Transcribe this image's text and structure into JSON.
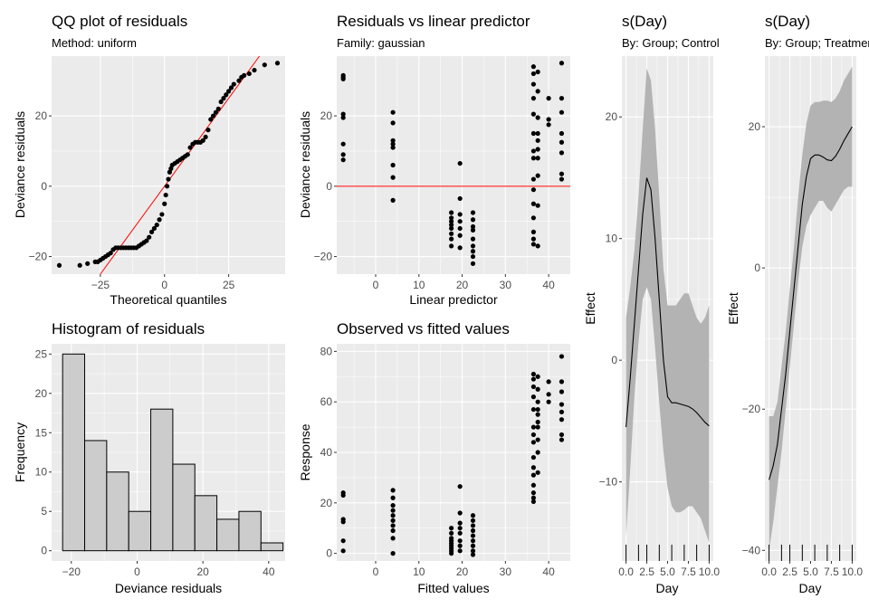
{
  "chart_data": [
    {
      "id": "qq",
      "type": "scatter",
      "title": "QQ plot of residuals",
      "subtitle": "Method: uniform",
      "xlabel": "Theoretical quantiles",
      "ylabel": "Deviance residuals",
      "xlim": [
        -44,
        47
      ],
      "ylim": [
        -25,
        37
      ],
      "xticks": [
        -25,
        0,
        25
      ],
      "yticks": [
        -20,
        0,
        20
      ],
      "reference_line": {
        "from": [
          -25,
          -25
        ],
        "to": [
          37,
          37
        ],
        "color": "#ff0000"
      },
      "points": [
        [
          -41,
          -22.5
        ],
        [
          -33,
          -22.5
        ],
        [
          -30,
          -22
        ],
        [
          -27,
          -21.5
        ],
        [
          -26,
          -21.5
        ],
        [
          -25,
          -21
        ],
        [
          -24,
          -20.5
        ],
        [
          -23,
          -20
        ],
        [
          -22,
          -19.5
        ],
        [
          -21,
          -19
        ],
        [
          -20,
          -18
        ],
        [
          -19,
          -17.5
        ],
        [
          -18,
          -17.5
        ],
        [
          -17,
          -17.5
        ],
        [
          -16,
          -17.5
        ],
        [
          -15,
          -17.5
        ],
        [
          -14,
          -17.5
        ],
        [
          -13,
          -17.5
        ],
        [
          -12,
          -17.5
        ],
        [
          -11,
          -17.5
        ],
        [
          -10,
          -17
        ],
        [
          -9,
          -16.5
        ],
        [
          -8,
          -16
        ],
        [
          -7,
          -15.5
        ],
        [
          -6,
          -14.5
        ],
        [
          -5,
          -13
        ],
        [
          -4,
          -12
        ],
        [
          -3,
          -11
        ],
        [
          -2,
          -9.5
        ],
        [
          -1,
          -8
        ],
        [
          0,
          -5
        ],
        [
          0.5,
          -2.5
        ],
        [
          1,
          0
        ],
        [
          1.5,
          2
        ],
        [
          2,
          4
        ],
        [
          2.5,
          5
        ],
        [
          3,
          6
        ],
        [
          4,
          6.5
        ],
        [
          5,
          7
        ],
        [
          6,
          7.5
        ],
        [
          7,
          8
        ],
        [
          8,
          8.5
        ],
        [
          9,
          9
        ],
        [
          10,
          11
        ],
        [
          11,
          12
        ],
        [
          12,
          12.5
        ],
        [
          13,
          12.5
        ],
        [
          14,
          12.5
        ],
        [
          15,
          13
        ],
        [
          16,
          14
        ],
        [
          17,
          16
        ],
        [
          18,
          19
        ],
        [
          19,
          20
        ],
        [
          20,
          21
        ],
        [
          21,
          22
        ],
        [
          22,
          24
        ],
        [
          23,
          25
        ],
        [
          24,
          26
        ],
        [
          25,
          27
        ],
        [
          26,
          28
        ],
        [
          27,
          29
        ],
        [
          29,
          30
        ],
        [
          30,
          31
        ],
        [
          31,
          31.5
        ],
        [
          33,
          32
        ],
        [
          35,
          33
        ],
        [
          39,
          34.5
        ],
        [
          44,
          35
        ]
      ]
    },
    {
      "id": "rvl",
      "type": "scatter",
      "title": "Residuals vs linear predictor",
      "subtitle": "Family: gaussian",
      "xlabel": "Linear predictor",
      "ylabel": "Deviance residuals",
      "xlim": [
        -9,
        45
      ],
      "ylim": [
        -25,
        37
      ],
      "xticks": [
        -10,
        0,
        10,
        20,
        30,
        40
      ],
      "yticks": [
        -20,
        0,
        20
      ],
      "hline": {
        "y": 0,
        "color": "#ff0000"
      },
      "points": [
        [
          -7.5,
          31
        ],
        [
          -7.5,
          31.5
        ],
        [
          -7.5,
          30.5
        ],
        [
          -7.5,
          20.5
        ],
        [
          -7.5,
          19.5
        ],
        [
          -7.5,
          12
        ],
        [
          -7.5,
          9
        ],
        [
          -7.5,
          7.5
        ],
        [
          4,
          21
        ],
        [
          4,
          18
        ],
        [
          4,
          13
        ],
        [
          4,
          12
        ],
        [
          4,
          11
        ],
        [
          4,
          6
        ],
        [
          4,
          2.5
        ],
        [
          4,
          -4
        ],
        [
          17.5,
          -7.5
        ],
        [
          17.5,
          -9
        ],
        [
          17.5,
          -10
        ],
        [
          17.5,
          -11
        ],
        [
          17.5,
          -12
        ],
        [
          17.5,
          -13.5
        ],
        [
          17.5,
          -15
        ],
        [
          17.5,
          -17
        ],
        [
          19.5,
          6.5
        ],
        [
          19.5,
          -3.5
        ],
        [
          19.5,
          -8
        ],
        [
          19.5,
          -10
        ],
        [
          19.5,
          -12
        ],
        [
          19.5,
          -14
        ],
        [
          19.5,
          -17.5
        ],
        [
          22.5,
          -7.5
        ],
        [
          22.5,
          -9.5
        ],
        [
          22.5,
          -11.5
        ],
        [
          22.5,
          -12.5
        ],
        [
          22.5,
          -15
        ],
        [
          22.5,
          -17
        ],
        [
          22.5,
          -18.5
        ],
        [
          22.5,
          -20
        ],
        [
          22.5,
          -22
        ],
        [
          36.5,
          34
        ],
        [
          36.5,
          32
        ],
        [
          36.5,
          29
        ],
        [
          36.5,
          25
        ],
        [
          36.5,
          20.5
        ],
        [
          36.5,
          15
        ],
        [
          36.5,
          10
        ],
        [
          36.5,
          8
        ],
        [
          36.5,
          2
        ],
        [
          36.5,
          -1
        ],
        [
          36.5,
          -5
        ],
        [
          36.5,
          -9
        ],
        [
          36.5,
          -13
        ],
        [
          36.5,
          -15
        ],
        [
          36.5,
          -16.5
        ],
        [
          37.5,
          32.5
        ],
        [
          37.5,
          27
        ],
        [
          37.5,
          19.5
        ],
        [
          37.5,
          15
        ],
        [
          37.5,
          13
        ],
        [
          37.5,
          10.5
        ],
        [
          37.5,
          8
        ],
        [
          37.5,
          3
        ],
        [
          37.5,
          -5.5
        ],
        [
          37.5,
          -17
        ],
        [
          40,
          25
        ],
        [
          40,
          19
        ],
        [
          40,
          17.5
        ],
        [
          43,
          35
        ],
        [
          43,
          25
        ],
        [
          43,
          21
        ],
        [
          43,
          15
        ],
        [
          43,
          12.5
        ],
        [
          43,
          9.5
        ],
        [
          43,
          3.5
        ],
        [
          43,
          2
        ]
      ]
    },
    {
      "id": "hist",
      "type": "bar",
      "title": "Histogram of residuals",
      "xlabel": "Deviance residuals",
      "ylabel": "Frequency",
      "bin_width": 6.7,
      "bin_centers": [
        -19.3,
        -12.6,
        -5.9,
        0.8,
        7.5,
        14.2,
        20.9,
        27.6,
        34.3,
        41
      ],
      "values": [
        25,
        14,
        10,
        5,
        18,
        11,
        7,
        4,
        5,
        1
      ],
      "xlim": [
        -26,
        45
      ],
      "ylim": [
        -1.3,
        26.3
      ],
      "xticks": [
        -20,
        0,
        20,
        40
      ],
      "yticks": [
        0,
        5,
        10,
        15,
        20,
        25
      ]
    },
    {
      "id": "ovf",
      "type": "scatter",
      "title": "Observed vs fitted values",
      "xlabel": "Fitted values",
      "ylabel": "Response",
      "xlim": [
        -9,
        45
      ],
      "ylim": [
        -3,
        83
      ],
      "xticks": [
        -10,
        0,
        10,
        20,
        30,
        40
      ],
      "yticks": [
        0,
        20,
        40,
        60,
        80
      ],
      "points": [
        [
          -7.5,
          24
        ],
        [
          -7.5,
          23
        ],
        [
          -7.5,
          13.5
        ],
        [
          -7.5,
          12.5
        ],
        [
          -7.5,
          5
        ],
        [
          -7.5,
          1
        ],
        [
          4,
          25
        ],
        [
          4,
          22
        ],
        [
          4,
          19
        ],
        [
          4,
          17
        ],
        [
          4,
          15
        ],
        [
          4,
          13
        ],
        [
          4,
          11
        ],
        [
          4,
          9
        ],
        [
          4,
          6
        ],
        [
          4,
          0
        ],
        [
          17.5,
          10
        ],
        [
          17.5,
          8
        ],
        [
          17.5,
          6
        ],
        [
          17.5,
          5
        ],
        [
          17.5,
          4
        ],
        [
          17.5,
          3
        ],
        [
          17.5,
          2
        ],
        [
          17.5,
          1
        ],
        [
          17.5,
          0
        ],
        [
          19.5,
          26.5
        ],
        [
          19.5,
          16
        ],
        [
          19.5,
          12
        ],
        [
          19.5,
          10
        ],
        [
          19.5,
          8
        ],
        [
          19.5,
          5
        ],
        [
          19.5,
          3
        ],
        [
          19.5,
          1
        ],
        [
          22.5,
          15
        ],
        [
          22.5,
          13
        ],
        [
          22.5,
          11
        ],
        [
          22.5,
          9
        ],
        [
          22.5,
          7
        ],
        [
          22.5,
          5
        ],
        [
          22.5,
          3
        ],
        [
          22.5,
          1
        ],
        [
          22.5,
          -0.5
        ],
        [
          36.5,
          71
        ],
        [
          36.5,
          69
        ],
        [
          36.5,
          66
        ],
        [
          36.5,
          62
        ],
        [
          36.5,
          57
        ],
        [
          36.5,
          50
        ],
        [
          36.5,
          47
        ],
        [
          36.5,
          44
        ],
        [
          36.5,
          38
        ],
        [
          36.5,
          34
        ],
        [
          36.5,
          31
        ],
        [
          36.5,
          27
        ],
        [
          36.5,
          24
        ],
        [
          36.5,
          22
        ],
        [
          36.5,
          20.5
        ],
        [
          37.5,
          70
        ],
        [
          37.5,
          65
        ],
        [
          37.5,
          60
        ],
        [
          37.5,
          57
        ],
        [
          37.5,
          55
        ],
        [
          37.5,
          52
        ],
        [
          37.5,
          50
        ],
        [
          37.5,
          45
        ],
        [
          37.5,
          40
        ],
        [
          37.5,
          32
        ],
        [
          40,
          68
        ],
        [
          40,
          63
        ],
        [
          40,
          60
        ],
        [
          43,
          78
        ],
        [
          43,
          68
        ],
        [
          43,
          64
        ],
        [
          43,
          59
        ],
        [
          43,
          56
        ],
        [
          43,
          53
        ],
        [
          43,
          47
        ],
        [
          43,
          45
        ]
      ]
    },
    {
      "id": "sday1",
      "type": "line",
      "title": "s(Day)",
      "subtitle": "By: Group; Control",
      "xlabel": "Day",
      "ylabel": "Effect",
      "xlim": [
        -0.5,
        10.5
      ],
      "ylim": [
        -16.5,
        25
      ],
      "xticks": [
        0,
        2.5,
        5,
        7.5,
        10
      ],
      "xtick_labels": [
        "0.0",
        "2.5",
        "5.0",
        "7.5",
        "10.0"
      ],
      "yticks": [
        -10,
        0,
        10,
        20
      ],
      "rug": [
        0,
        1.5,
        2.5,
        4,
        5.5,
        7,
        8.5,
        10
      ],
      "x": [
        0,
        0.5,
        1,
        1.5,
        2,
        2.5,
        3,
        3.5,
        4,
        4.5,
        5,
        5.5,
        6,
        6.5,
        7,
        7.5,
        8,
        8.5,
        9,
        9.5,
        10
      ],
      "y": [
        -5.5,
        -1.5,
        3,
        7.5,
        12,
        15,
        14,
        10,
        5,
        0,
        -3,
        -3.5,
        -3.5,
        -3.6,
        -3.7,
        -3.8,
        -4,
        -4.3,
        -4.7,
        -5.1,
        -5.4
      ],
      "lower": [
        -14.5,
        -9,
        -3,
        1.5,
        5,
        6,
        5,
        1,
        -3.5,
        -7.5,
        -10.5,
        -12,
        -12.5,
        -12.5,
        -12.3,
        -12,
        -12,
        -12.5,
        -13,
        -14,
        -15
      ],
      "upper": [
        3.5,
        6,
        9,
        13.5,
        19,
        24,
        23,
        19,
        13.5,
        7.5,
        4.5,
        4.5,
        4.5,
        5,
        5.5,
        5.5,
        4.5,
        3.5,
        3,
        3.5,
        4.5
      ]
    },
    {
      "id": "sday2",
      "type": "line",
      "title": "s(Day)",
      "subtitle": "By: Group; Treatment",
      "xlabel": "Day",
      "ylabel": "Effect",
      "xlim": [
        -0.5,
        10.5
      ],
      "ylim": [
        -41.5,
        30
      ],
      "xticks": [
        0,
        2.5,
        5,
        7.5,
        10
      ],
      "xtick_labels": [
        "0.0",
        "2.5",
        "5.0",
        "7.5",
        "10.0"
      ],
      "yticks": [
        -40,
        -20,
        0,
        20
      ],
      "rug": [
        0,
        1.5,
        2.5,
        4,
        5.5,
        7,
        8.5,
        10
      ],
      "x": [
        0,
        0.5,
        1,
        1.5,
        2,
        2.5,
        3,
        3.5,
        4,
        4.5,
        5,
        5.5,
        6,
        6.5,
        7,
        7.5,
        8,
        8.5,
        9,
        9.5,
        10
      ],
      "y": [
        -30,
        -28,
        -25,
        -20,
        -15,
        -9,
        -3,
        3,
        9,
        13,
        15.5,
        16,
        16,
        15.7,
        15.3,
        15.2,
        15.8,
        16.8,
        18,
        19,
        20
      ],
      "lower": [
        -40,
        -36,
        -31,
        -26,
        -20,
        -14,
        -8,
        -2,
        3,
        6,
        7.5,
        8.5,
        9.5,
        9.5,
        8.5,
        8,
        9,
        10,
        11,
        11.5,
        11.5
      ],
      "upper": [
        -21,
        -21,
        -19,
        -14,
        -9,
        -3,
        3,
        10,
        16,
        20.5,
        23,
        23.5,
        23.5,
        23.7,
        23.7,
        23.5,
        24,
        25,
        26.5,
        27.5,
        28.5
      ]
    }
  ]
}
